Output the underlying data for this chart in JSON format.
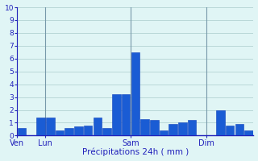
{
  "values": [
    0.6,
    0,
    1.4,
    1.4,
    0.4,
    0.6,
    0.7,
    0.8,
    1.4,
    0.6,
    3.2,
    3.2,
    6.5,
    1.3,
    1.2,
    0.4,
    0.9,
    1.0,
    1.2,
    0,
    0,
    2.0,
    0.8,
    0.9,
    0.4
  ],
  "day_positions": [
    0,
    3,
    12,
    20
  ],
  "day_labels": [
    "Ven",
    "Lun",
    "Sam",
    "Dim"
  ],
  "day_vline_positions": [
    0,
    3,
    12,
    20
  ],
  "xlabel": "Précipitations 24h ( mm )",
  "ylim": [
    0,
    10
  ],
  "yticks": [
    0,
    1,
    2,
    3,
    4,
    5,
    6,
    7,
    8,
    9,
    10
  ],
  "bar_color": "#1a5cd4",
  "bar_edge_color": "#1040bb",
  "bg_color": "#e0f5f5",
  "grid_color": "#aacccc",
  "axis_color": "#2222bb",
  "tick_label_color": "#2222bb",
  "xlabel_color": "#2222bb",
  "vline_color": "#7799aa",
  "figsize": [
    3.2,
    2.0
  ],
  "dpi": 100
}
